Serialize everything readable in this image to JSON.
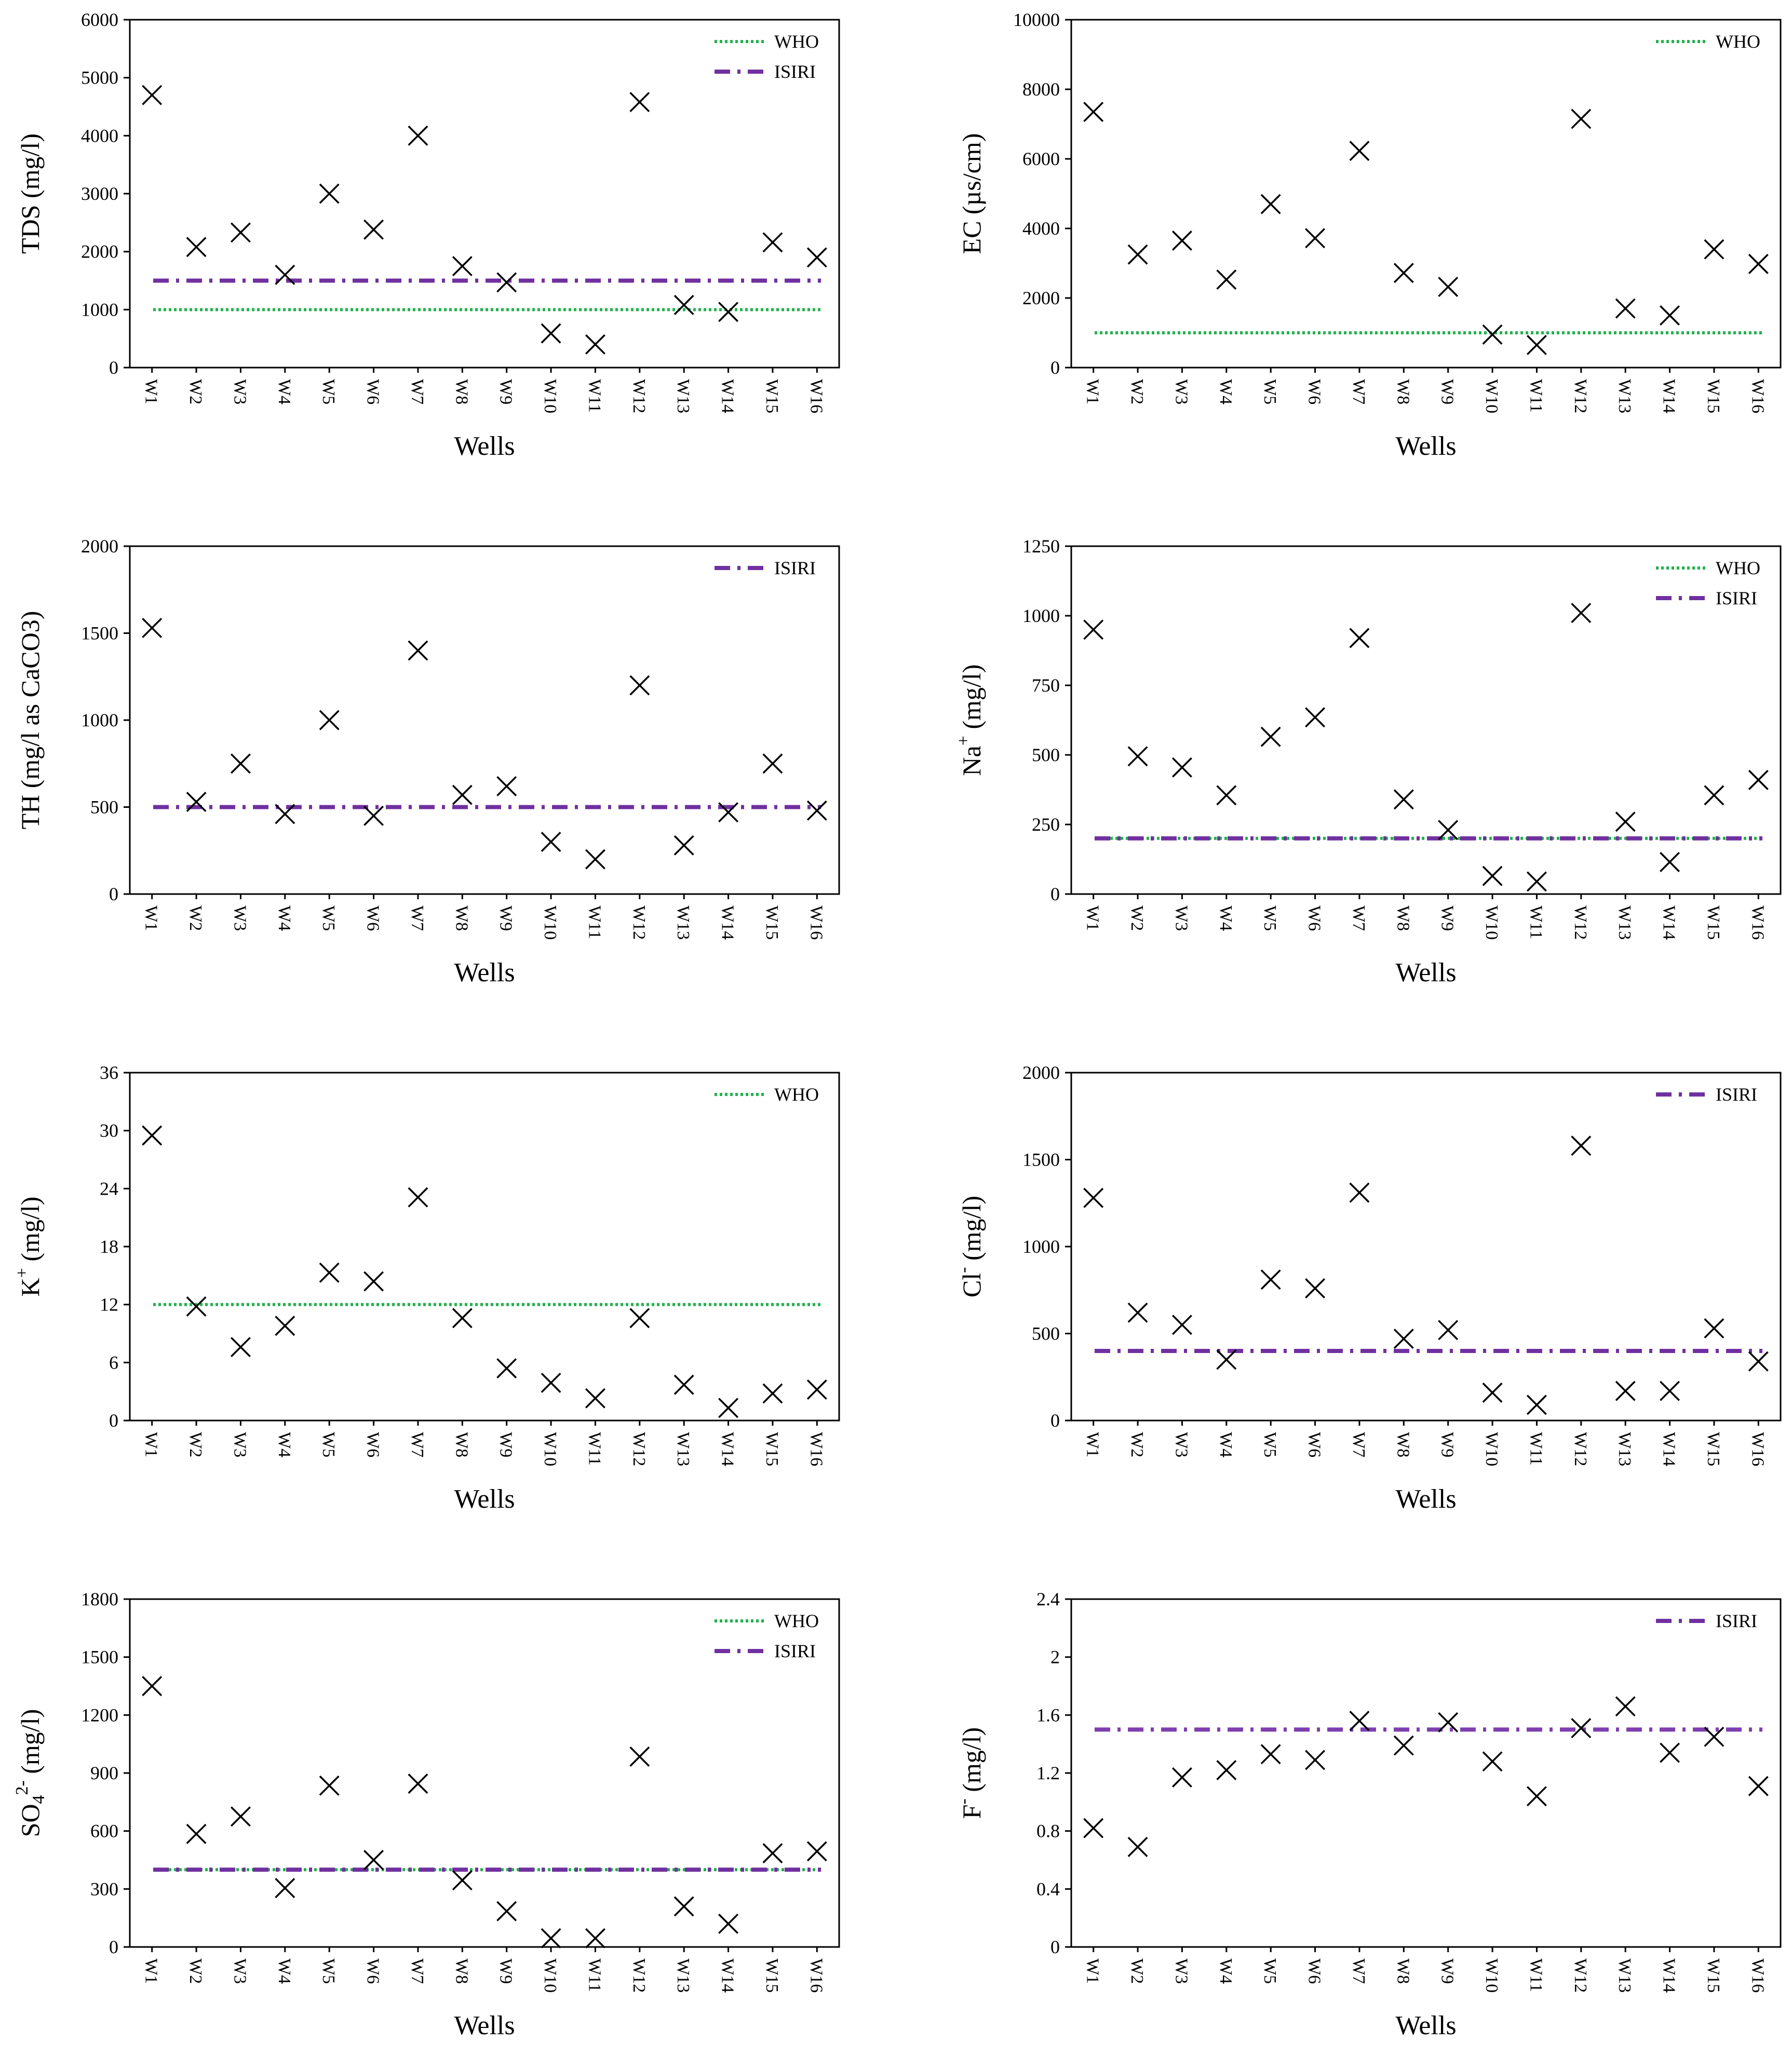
{
  "colors": {
    "who": "#22b14c",
    "isiri": "#7030a0",
    "isiri_fluoride": "#7f3faf",
    "marker": "#000000"
  },
  "chart_data": [
    {
      "type": "scatter",
      "title": "",
      "xlabel": "Wells",
      "ylabel": "TDS (mg/l)",
      "categories": [
        "W1",
        "W2",
        "W3",
        "W4",
        "W5",
        "W6",
        "W7",
        "W8",
        "W9",
        "W10",
        "W11",
        "W12",
        "W13",
        "W14",
        "W15",
        "W16"
      ],
      "values": [
        4700,
        2080,
        2330,
        1600,
        3000,
        2380,
        4000,
        1750,
        1470,
        590,
        400,
        4580,
        1080,
        960,
        2160,
        1900
      ],
      "ylim": [
        0,
        6000
      ],
      "yticks": [
        "0",
        "1000",
        "2000",
        "3000",
        "4000",
        "5000",
        "6000"
      ],
      "series": [
        {
          "name": "TDS",
          "marker": "x"
        }
      ],
      "reference_lines": [
        {
          "name": "WHO",
          "value": 1000,
          "style": "dotted"
        },
        {
          "name": "ISIRI",
          "value": 1500,
          "style": "dashdot"
        }
      ],
      "legend": "top-right"
    },
    {
      "type": "scatter",
      "title": "",
      "xlabel": "Wells",
      "ylabel": "EC (µs/cm)",
      "categories": [
        "W1",
        "W2",
        "W3",
        "W4",
        "W5",
        "W6",
        "W7",
        "W8",
        "W9",
        "W10",
        "W11",
        "W12",
        "W13",
        "W14",
        "W15",
        "W16"
      ],
      "values": [
        7350,
        3250,
        3650,
        2530,
        4700,
        3720,
        6230,
        2720,
        2320,
        950,
        650,
        7150,
        1700,
        1500,
        3400,
        2980
      ],
      "ylim": [
        0,
        10000
      ],
      "yticks": [
        "0",
        "2000",
        "4000",
        "6000",
        "8000",
        "10000"
      ],
      "series": [
        {
          "name": "EC",
          "marker": "x"
        }
      ],
      "reference_lines": [
        {
          "name": "WHO",
          "value": 1000,
          "style": "dotted"
        }
      ],
      "legend": "top-right"
    },
    {
      "type": "scatter",
      "title": "",
      "xlabel": "Wells",
      "ylabel": "TH (mg/l as CaCO3)",
      "categories": [
        "W1",
        "W2",
        "W3",
        "W4",
        "W5",
        "W6",
        "W7",
        "W8",
        "W9",
        "W10",
        "W11",
        "W12",
        "W13",
        "W14",
        "W15",
        "W16"
      ],
      "values": [
        1530,
        530,
        750,
        460,
        1000,
        450,
        1400,
        570,
        620,
        300,
        200,
        1200,
        280,
        470,
        750,
        480
      ],
      "ylim": [
        0,
        2000
      ],
      "yticks": [
        "0",
        "500",
        "1000",
        "1500",
        "2000"
      ],
      "series": [
        {
          "name": "TH",
          "marker": "x"
        }
      ],
      "reference_lines": [
        {
          "name": "ISIRI",
          "value": 500,
          "style": "dashdot"
        }
      ],
      "legend": "top-right"
    },
    {
      "type": "scatter",
      "title": "",
      "xlabel": "Wells",
      "ylabel": "Na+ (mg/l)",
      "ylabel_base": "Na",
      "ylabel_sup": "+",
      "ylabel_rest": " (mg/l)",
      "categories": [
        "W1",
        "W2",
        "W3",
        "W4",
        "W5",
        "W6",
        "W7",
        "W8",
        "W9",
        "W10",
        "W11",
        "W12",
        "W13",
        "W14",
        "W15",
        "W16"
      ],
      "values": [
        950,
        495,
        455,
        355,
        565,
        635,
        920,
        340,
        230,
        65,
        45,
        1010,
        260,
        115,
        355,
        410
      ],
      "ylim": [
        0,
        1250
      ],
      "yticks": [
        "0",
        "250",
        "500",
        "750",
        "1000",
        "1250"
      ],
      "series": [
        {
          "name": "Na+",
          "marker": "x"
        }
      ],
      "reference_lines": [
        {
          "name": "WHO",
          "value": 200,
          "style": "dotted"
        },
        {
          "name": "ISIRI",
          "value": 200,
          "style": "dashdot"
        }
      ],
      "legend": "top-right"
    },
    {
      "type": "scatter",
      "title": "",
      "xlabel": "Wells",
      "ylabel": "K+ (mg/l)",
      "ylabel_base": "K",
      "ylabel_sup": "+",
      "ylabel_rest": " (mg/l)",
      "categories": [
        "W1",
        "W2",
        "W3",
        "W4",
        "W5",
        "W6",
        "W7",
        "W8",
        "W9",
        "W10",
        "W11",
        "W12",
        "W13",
        "W14",
        "W15",
        "W16"
      ],
      "values": [
        29.5,
        11.8,
        7.6,
        9.8,
        15.3,
        14.4,
        23.1,
        10.6,
        5.4,
        3.9,
        2.3,
        10.6,
        3.7,
        1.3,
        2.8,
        3.2
      ],
      "ylim": [
        0,
        36
      ],
      "yticks": [
        "0",
        "6",
        "12",
        "18",
        "24",
        "30",
        "36"
      ],
      "series": [
        {
          "name": "K+",
          "marker": "x"
        }
      ],
      "reference_lines": [
        {
          "name": "WHO",
          "value": 12,
          "style": "dotted"
        }
      ],
      "legend": "top-right"
    },
    {
      "type": "scatter",
      "title": "",
      "xlabel": "Wells",
      "ylabel": "Cl- (mg/l)",
      "ylabel_base": "Cl",
      "ylabel_sup": "-",
      "ylabel_rest": " (mg/l)",
      "categories": [
        "W1",
        "W2",
        "W3",
        "W4",
        "W5",
        "W6",
        "W7",
        "W8",
        "W9",
        "W10",
        "W11",
        "W12",
        "W13",
        "W14",
        "W15",
        "W16"
      ],
      "values": [
        1280,
        620,
        550,
        350,
        810,
        760,
        1310,
        470,
        520,
        160,
        90,
        1580,
        170,
        170,
        530,
        340
      ],
      "ylim": [
        0,
        2000
      ],
      "yticks": [
        "0",
        "500",
        "1000",
        "1500",
        "2000"
      ],
      "series": [
        {
          "name": "Cl-",
          "marker": "x"
        }
      ],
      "reference_lines": [
        {
          "name": "ISIRI",
          "value": 400,
          "style": "dashdot"
        }
      ],
      "legend": "top-right"
    },
    {
      "type": "scatter",
      "title": "",
      "xlabel": "Wells",
      "ylabel": "SO42- (mg/l)",
      "ylabel_base": "SO",
      "ylabel_sub": "4",
      "ylabel_sup": "2-",
      "ylabel_rest": " (mg/l)",
      "categories": [
        "W1",
        "W2",
        "W3",
        "W4",
        "W5",
        "W6",
        "W7",
        "W8",
        "W9",
        "W10",
        "W11",
        "W12",
        "W13",
        "W14",
        "W15",
        "W16"
      ],
      "values": [
        1350,
        585,
        675,
        305,
        835,
        450,
        845,
        345,
        185,
        45,
        45,
        985,
        210,
        120,
        485,
        495
      ],
      "ylim": [
        0,
        1800
      ],
      "yticks": [
        "0",
        "300",
        "600",
        "900",
        "1200",
        "1500",
        "1800"
      ],
      "series": [
        {
          "name": "SO42-",
          "marker": "x"
        }
      ],
      "reference_lines": [
        {
          "name": "WHO",
          "value": 400,
          "style": "dotted"
        },
        {
          "name": "ISIRI",
          "value": 400,
          "style": "dashdot"
        }
      ],
      "legend": "top-right"
    },
    {
      "type": "scatter",
      "title": "",
      "xlabel": "Wells",
      "ylabel": "F- (mg/l)",
      "ylabel_base": "F",
      "ylabel_sup": "-",
      "ylabel_rest": " (mg/l)",
      "categories": [
        "W1",
        "W2",
        "W3",
        "W4",
        "W5",
        "W6",
        "W7",
        "W8",
        "W9",
        "W10",
        "W11",
        "W12",
        "W13",
        "W14",
        "W15",
        "W16"
      ],
      "values": [
        0.82,
        0.69,
        1.17,
        1.22,
        1.33,
        1.29,
        1.56,
        1.39,
        1.55,
        1.28,
        1.04,
        1.51,
        1.66,
        1.34,
        1.45,
        1.11
      ],
      "ylim": [
        0,
        2.4
      ],
      "yticks": [
        "0",
        "0.4",
        "0.8",
        "1.2",
        "1.6",
        "2",
        "2.4"
      ],
      "series": [
        {
          "name": "F-",
          "marker": "x"
        }
      ],
      "reference_lines": [
        {
          "name": "ISIRI",
          "value": 1.5,
          "style": "dashdot"
        }
      ],
      "legend": "top-right"
    }
  ]
}
